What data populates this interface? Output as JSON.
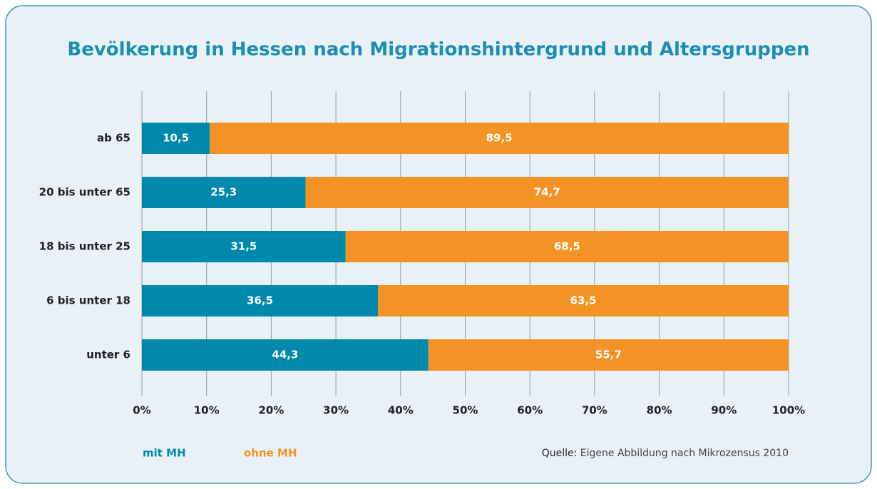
{
  "chart_data": {
    "type": "stacked-bar-horizontal",
    "title": "Bevölkerung in Hessen nach Migrationshintergrund und Altersgruppen",
    "categories": [
      "ab 65",
      "20 bis unter 65",
      "18 bis unter 25",
      "6 bis unter 18",
      "unter 6"
    ],
    "series": [
      {
        "name": "mit MH",
        "color": "#0089ad",
        "values": [
          10.5,
          25.3,
          31.5,
          36.5,
          44.3
        ],
        "value_labels": [
          "10,5",
          "25,3",
          "31,5",
          "36,5",
          "44,3"
        ]
      },
      {
        "name": "ohne MH",
        "color": "#f39325",
        "values": [
          89.5,
          74.7,
          68.5,
          63.5,
          55.7
        ],
        "value_labels": [
          "89,5",
          "74,7",
          "68,5",
          "63,5",
          "55,7"
        ]
      }
    ],
    "xlim": [
      0,
      100
    ],
    "xticks": [
      {
        "value": 0,
        "label": "0%"
      },
      {
        "value": 10,
        "label": "10%"
      },
      {
        "value": 20,
        "label": "20%"
      },
      {
        "value": 30,
        "label": "30%"
      },
      {
        "value": 40,
        "label": "40%"
      },
      {
        "value": 50,
        "label": "50%"
      },
      {
        "value": 60,
        "label": "60%"
      },
      {
        "value": 70,
        "label": "70%"
      },
      {
        "value": 80,
        "label": "80%"
      },
      {
        "value": 90,
        "label": "90%"
      },
      {
        "value": 100,
        "label": "100%"
      }
    ],
    "grid": true,
    "source_label": "Quelle:",
    "source": "Eigene Abbildung nach Mikrozensus 2010"
  }
}
